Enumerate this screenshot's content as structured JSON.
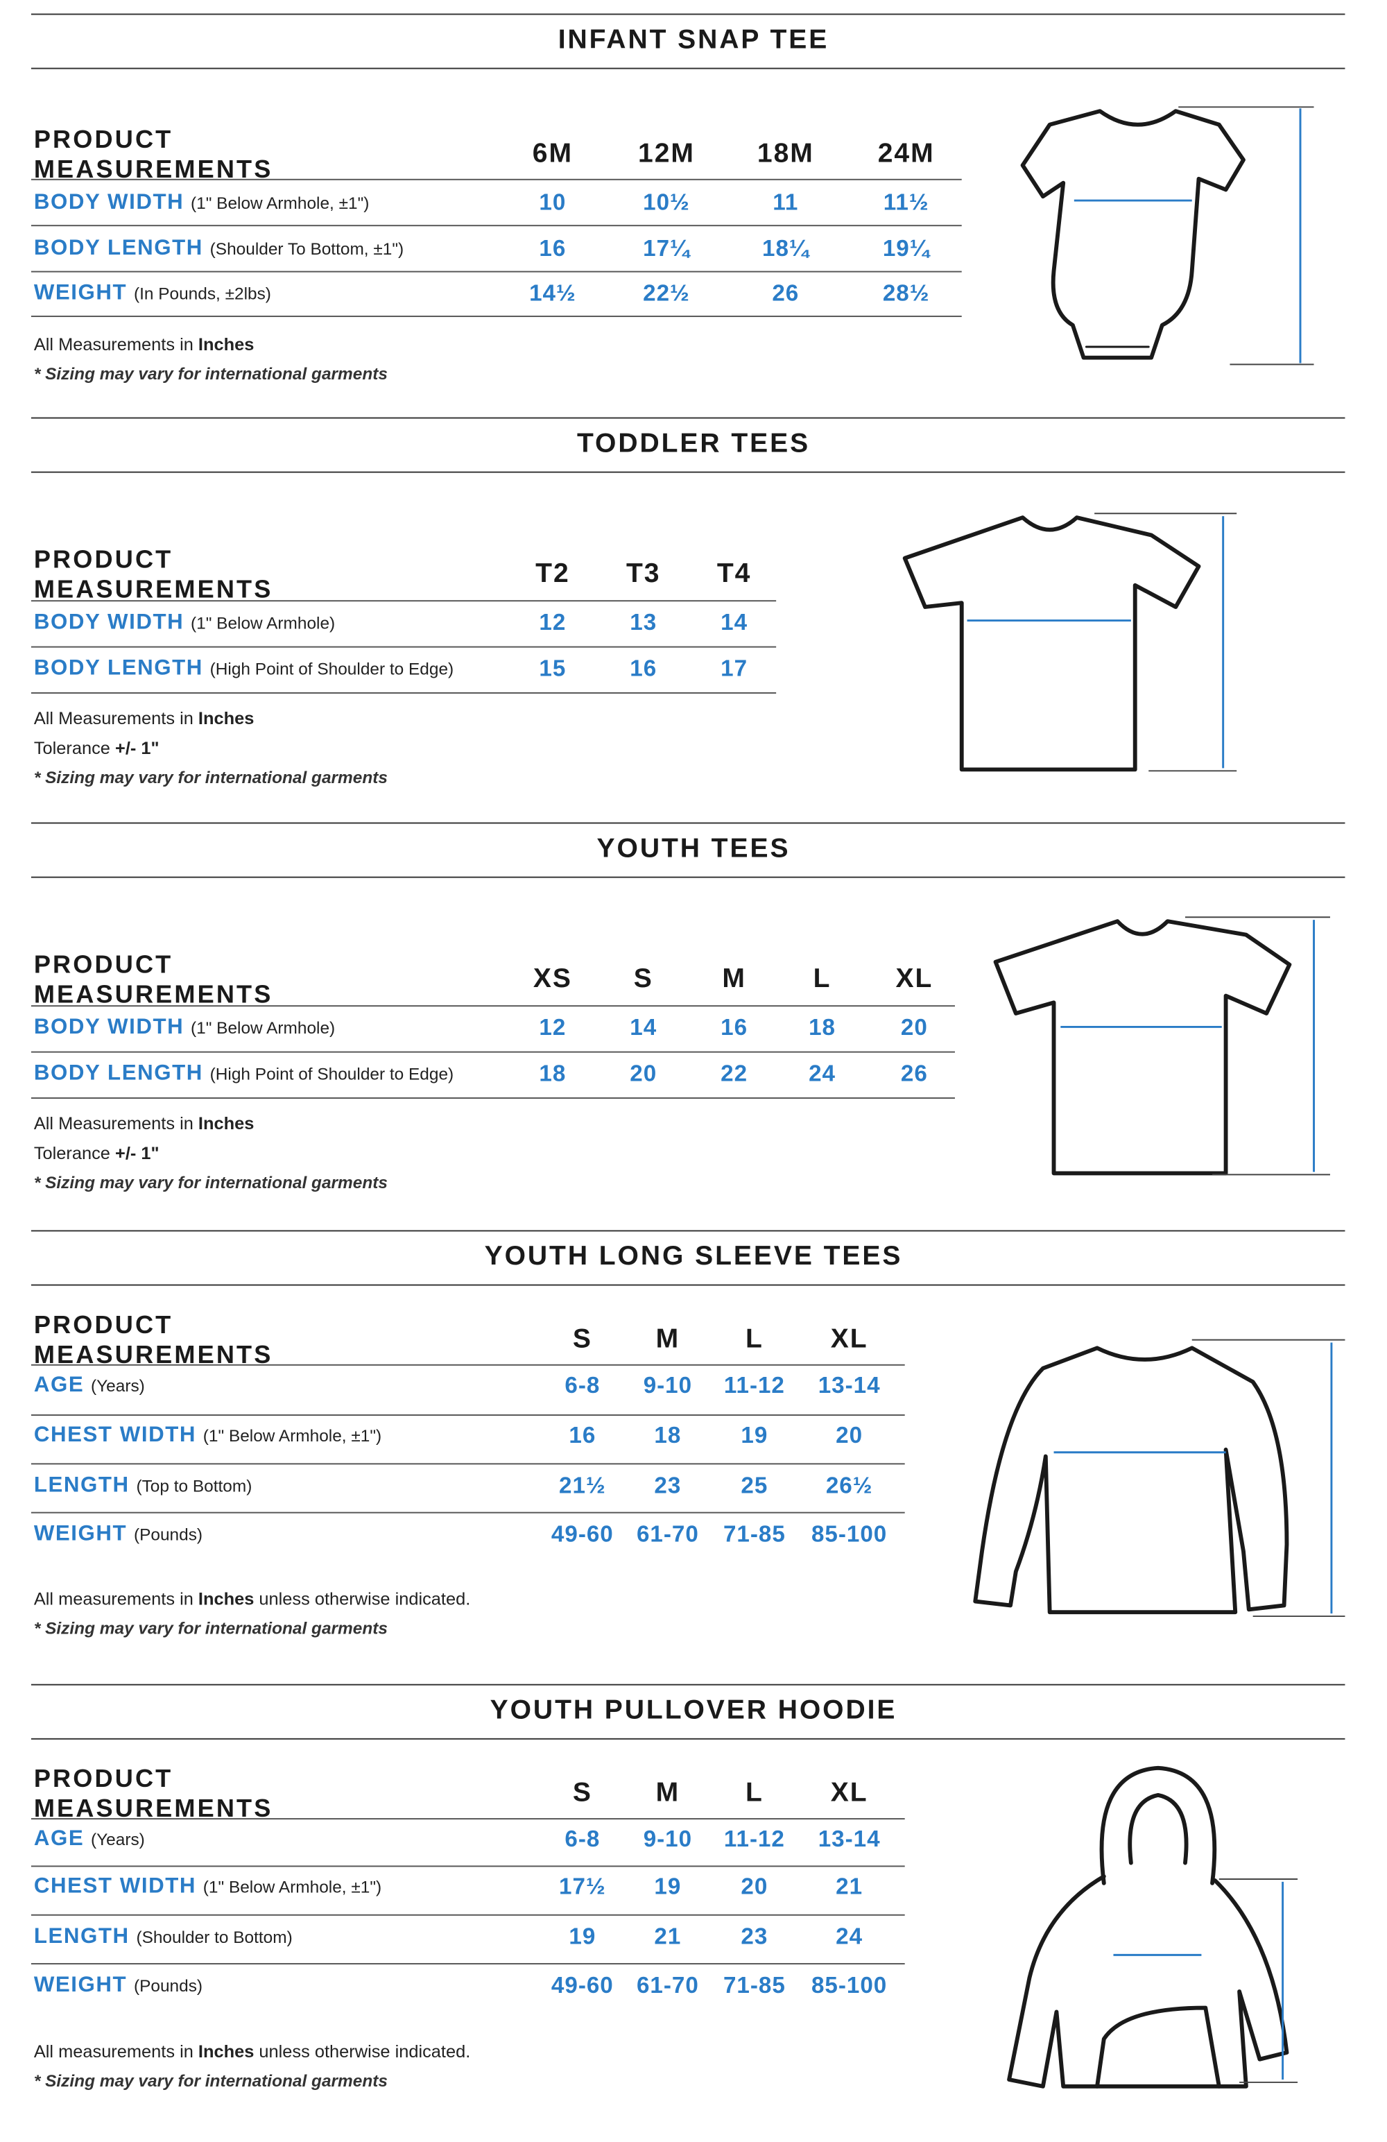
{
  "accent_color": "#2a7cc7",
  "sections": [
    {
      "title": "INFANT SNAP TEE",
      "header": "PRODUCT MEASUREMENTS",
      "sizes": [
        "6M",
        "12M",
        "18M",
        "24M"
      ],
      "rows": [
        {
          "label": "BODY WIDTH",
          "note": "(1\" Below Armhole, ±1\")",
          "values": [
            "10",
            "10½",
            "11",
            "11½"
          ]
        },
        {
          "label": "BODY LENGTH",
          "note": "(Shoulder To Bottom, ±1\")",
          "values": [
            "16",
            "17¼",
            "18¼",
            "19¼"
          ]
        },
        {
          "label": "WEIGHT",
          "note": "(In Pounds, ±2lbs)",
          "values": [
            "14½",
            "22½",
            "26",
            "28½"
          ]
        }
      ],
      "notes": [
        {
          "text": "All Measurements in ",
          "bold": "Inches",
          "after": ""
        },
        {
          "text": "* Sizing may vary for international garments",
          "italic": true
        }
      ],
      "garment_icon": "onesie-icon"
    },
    {
      "title": "TODDLER TEES",
      "header": "PRODUCT MEASUREMENTS",
      "sizes": [
        "T2",
        "T3",
        "T4"
      ],
      "rows": [
        {
          "label": "BODY WIDTH",
          "note": "(1\" Below Armhole)",
          "values": [
            "12",
            "13",
            "14"
          ]
        },
        {
          "label": "BODY LENGTH",
          "note": "(High Point of Shoulder to Edge)",
          "values": [
            "15",
            "16",
            "17"
          ]
        }
      ],
      "notes": [
        {
          "text": "All Measurements in ",
          "bold": "Inches",
          "after": ""
        },
        {
          "text": "Tolerance ",
          "bold": "+/-  1\"",
          "after": ""
        },
        {
          "text": "* Sizing may vary for international garments",
          "italic": true
        }
      ],
      "garment_icon": "t-shirt-icon"
    },
    {
      "title": "YOUTH TEES",
      "header": "PRODUCT MEASUREMENTS",
      "sizes": [
        "XS",
        "S",
        "M",
        "L",
        "XL"
      ],
      "rows": [
        {
          "label": "BODY WIDTH",
          "note": "(1\" Below Armhole)",
          "values": [
            "12",
            "14",
            "16",
            "18",
            "20"
          ]
        },
        {
          "label": "BODY LENGTH",
          "note": "(High Point of Shoulder to Edge)",
          "values": [
            "18",
            "20",
            "22",
            "24",
            "26"
          ]
        }
      ],
      "notes": [
        {
          "text": "All Measurements in ",
          "bold": "Inches",
          "after": ""
        },
        {
          "text": "Tolerance ",
          "bold": "+/-  1\"",
          "after": ""
        },
        {
          "text": "* Sizing may vary for international garments",
          "italic": true
        }
      ],
      "garment_icon": "t-shirt-icon"
    },
    {
      "title": "YOUTH LONG SLEEVE TEES",
      "header": "PRODUCT MEASUREMENTS",
      "sizes": [
        "S",
        "M",
        "L",
        "XL"
      ],
      "rows": [
        {
          "label": "AGE",
          "note": "(Years)",
          "values": [
            "6-8",
            "9-10",
            "11-12",
            "13-14"
          ]
        },
        {
          "label": "CHEST WIDTH",
          "note": "(1\" Below Armhole, ±1\")",
          "values": [
            "16",
            "18",
            "19",
            "20"
          ]
        },
        {
          "label": "LENGTH",
          "note": "(Top to Bottom)",
          "values": [
            "21½",
            "23",
            "25",
            "26½"
          ]
        },
        {
          "label": "WEIGHT",
          "note": "(Pounds)",
          "values": [
            "49-60",
            "61-70",
            "71-85",
            "85-100"
          ]
        }
      ],
      "notes": [
        {
          "text": "All measurements in ",
          "bold": "Inches",
          "after": " unless otherwise indicated."
        },
        {
          "text": "* Sizing may vary for international garments",
          "italic": true
        }
      ],
      "garment_icon": "long-sleeve-shirt-icon"
    },
    {
      "title": "YOUTH PULLOVER HOODIE",
      "header": "PRODUCT MEASUREMENTS",
      "sizes": [
        "S",
        "M",
        "L",
        "XL"
      ],
      "rows": [
        {
          "label": "AGE",
          "note": "(Years)",
          "values": [
            "6-8",
            "9-10",
            "11-12",
            "13-14"
          ]
        },
        {
          "label": "CHEST WIDTH",
          "note": "(1\" Below Armhole, ±1\")",
          "values": [
            "17½",
            "19",
            "20",
            "21"
          ]
        },
        {
          "label": "LENGTH",
          "note": "(Shoulder to Bottom)",
          "values": [
            "19",
            "21",
            "23",
            "24"
          ]
        },
        {
          "label": "WEIGHT",
          "note": "(Pounds)",
          "values": [
            "49-60",
            "61-70",
            "71-85",
            "85-100"
          ]
        }
      ],
      "notes": [
        {
          "text": "All measurements in ",
          "bold": "Inches",
          "after": " unless otherwise indicated."
        },
        {
          "text": "* Sizing may vary for international garments",
          "italic": true
        }
      ],
      "garment_icon": "hoodie-icon"
    }
  ]
}
